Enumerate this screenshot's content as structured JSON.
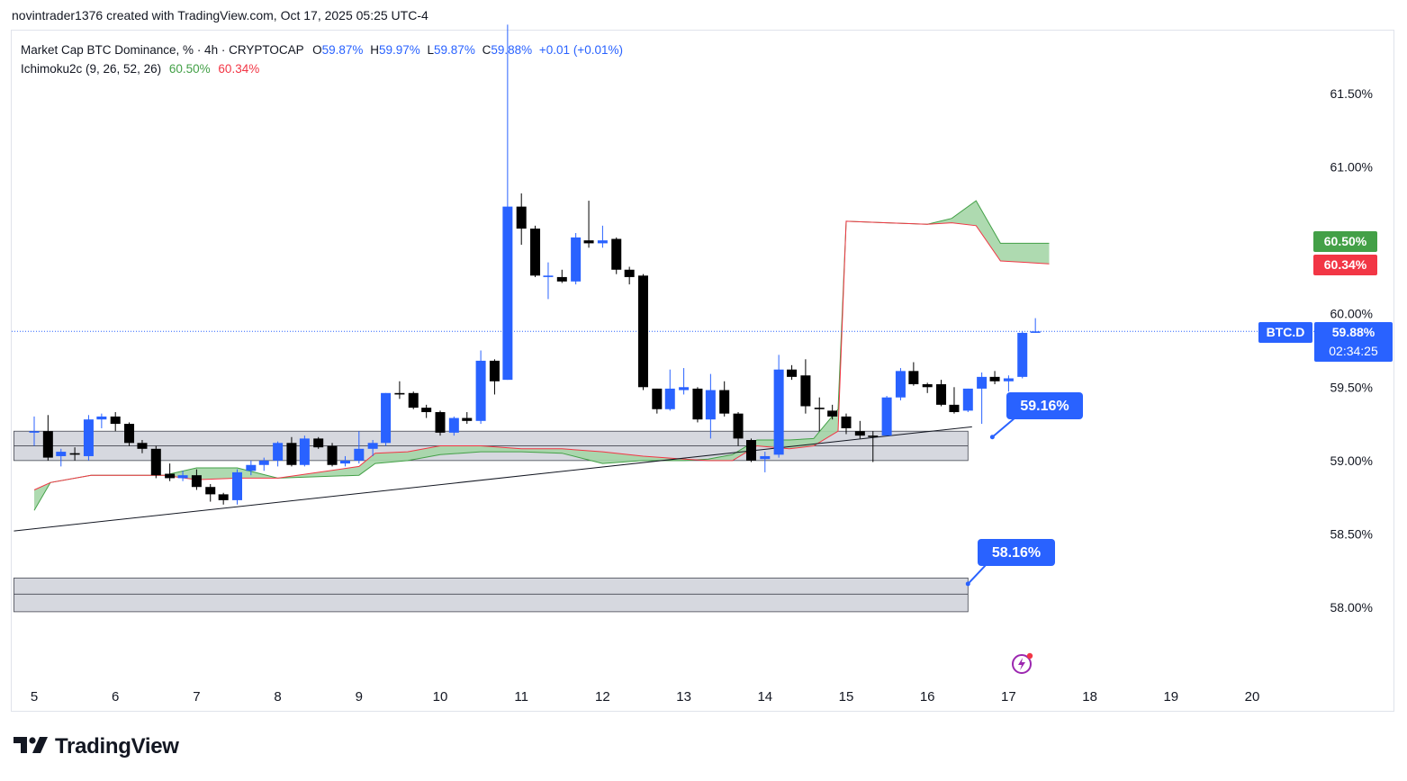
{
  "credit": "novintrader1376 created with TradingView.com, Oct 17, 2025 05:25 UTC-4",
  "legend": {
    "symbol_line": "Market Cap BTC Dominance, % · 4h · CRYPTOCAP",
    "o_label": "O",
    "o_value": "59.87%",
    "h_label": "H",
    "h_value": "59.97%",
    "l_label": "L",
    "l_value": "59.87%",
    "c_label": "C",
    "c_value": "59.88%",
    "change": "+0.01 (+0.01%)",
    "indicator": "Ichimoku2c (9, 26, 52, 26)",
    "ind_v1": "60.50%",
    "ind_v2": "60.34%"
  },
  "price_tags": {
    "green": "60.50%",
    "red": "60.34%",
    "symbol": "BTC.D",
    "last": "59.88%",
    "countdown": "02:34:25"
  },
  "callouts": {
    "upper": "59.16%",
    "lower": "58.16%"
  },
  "brand": "TradingView",
  "colors": {
    "up": "#2962ff",
    "down": "#000000",
    "cloud": "#a5d6a7",
    "cloud_edge_a": "#43a047",
    "cloud_edge_b": "#f23645",
    "accent": "#2962ff"
  },
  "icons": [
    "tradingview-logo-icon",
    "lightning-icon"
  ],
  "chart_data": {
    "type": "candlestick",
    "interval": "4h",
    "ylim": [
      57.55,
      61.85
    ],
    "y_ticks": [
      "61.50%",
      "61.00%",
      "60.00%",
      "59.50%",
      "59.00%",
      "58.50%",
      "58.00%"
    ],
    "y_tick_values": [
      61.5,
      61.0,
      60.0,
      59.5,
      59.0,
      58.5,
      58.0
    ],
    "x_ticks": [
      "5",
      "6",
      "7",
      "8",
      "9",
      "10",
      "11",
      "12",
      "13",
      "14",
      "15",
      "16",
      "17",
      "18",
      "19",
      "20"
    ],
    "last_price": 59.88,
    "candles": [
      [
        5.0,
        59.19,
        59.2,
        59.3,
        59.1
      ],
      [
        5.17,
        59.2,
        59.02,
        59.31,
        59.0
      ],
      [
        5.33,
        59.03,
        59.06,
        59.08,
        58.96
      ],
      [
        5.5,
        59.05,
        59.04,
        59.09,
        59.0
      ],
      [
        5.67,
        59.03,
        59.28,
        59.31,
        59.0
      ],
      [
        5.83,
        59.28,
        59.3,
        59.32,
        59.22
      ],
      [
        6.0,
        59.3,
        59.25,
        59.33,
        59.2
      ],
      [
        6.17,
        59.25,
        59.12,
        59.26,
        59.1
      ],
      [
        6.33,
        59.12,
        59.08,
        59.14,
        59.05
      ],
      [
        6.5,
        59.08,
        58.9,
        59.1,
        58.88
      ],
      [
        6.67,
        58.91,
        58.88,
        58.98,
        58.86
      ],
      [
        6.83,
        58.88,
        58.9,
        58.93,
        58.86
      ],
      [
        7.0,
        58.9,
        58.82,
        58.94,
        58.8
      ],
      [
        7.17,
        58.82,
        58.77,
        58.84,
        58.72
      ],
      [
        7.33,
        58.77,
        58.73,
        58.78,
        58.7
      ],
      [
        7.5,
        58.73,
        58.92,
        58.94,
        58.7
      ],
      [
        7.67,
        58.93,
        58.97,
        59.0,
        58.9
      ],
      [
        7.83,
        58.97,
        59.0,
        59.02,
        58.93
      ],
      [
        8.0,
        59.0,
        59.12,
        59.13,
        58.96
      ],
      [
        8.17,
        59.12,
        58.97,
        59.16,
        58.96
      ],
      [
        8.33,
        58.97,
        59.15,
        59.17,
        58.96
      ],
      [
        8.5,
        59.15,
        59.09,
        59.16,
        59.08
      ],
      [
        8.67,
        59.1,
        58.97,
        59.12,
        58.96
      ],
      [
        8.83,
        58.98,
        59.0,
        59.03,
        58.96
      ],
      [
        9.0,
        59.0,
        59.08,
        59.2,
        58.98
      ],
      [
        9.17,
        59.08,
        59.12,
        59.14,
        59.03
      ],
      [
        9.33,
        59.12,
        59.46,
        59.46,
        59.1
      ],
      [
        9.5,
        59.46,
        59.45,
        59.54,
        59.42
      ],
      [
        9.67,
        59.46,
        59.36,
        59.47,
        59.35
      ],
      [
        9.83,
        59.36,
        59.33,
        59.38,
        59.29
      ],
      [
        10.0,
        59.33,
        59.19,
        59.34,
        59.17
      ],
      [
        10.17,
        59.19,
        59.29,
        59.3,
        59.17
      ],
      [
        10.33,
        59.29,
        59.27,
        59.33,
        59.25
      ],
      [
        10.5,
        59.27,
        59.68,
        59.75,
        59.25
      ],
      [
        10.67,
        59.68,
        59.54,
        59.69,
        59.45
      ],
      [
        10.83,
        59.55,
        60.73,
        61.97,
        59.55
      ],
      [
        11.0,
        60.73,
        60.58,
        60.82,
        60.47
      ],
      [
        11.17,
        60.58,
        60.26,
        60.6,
        60.25
      ],
      [
        11.33,
        60.25,
        60.26,
        60.35,
        60.1
      ],
      [
        11.5,
        60.25,
        60.22,
        60.3,
        60.21
      ],
      [
        11.67,
        60.22,
        60.52,
        60.55,
        60.2
      ],
      [
        11.83,
        60.5,
        60.48,
        60.77,
        60.45
      ],
      [
        12.0,
        60.48,
        60.5,
        60.6,
        60.45
      ],
      [
        12.17,
        60.51,
        60.3,
        60.52,
        60.27
      ],
      [
        12.33,
        60.3,
        60.25,
        60.32,
        60.2
      ],
      [
        12.5,
        60.26,
        59.5,
        60.27,
        59.48
      ],
      [
        12.67,
        59.49,
        59.35,
        59.49,
        59.32
      ],
      [
        12.83,
        59.35,
        59.49,
        59.62,
        59.34
      ],
      [
        13.0,
        59.48,
        59.5,
        59.63,
        59.45
      ],
      [
        13.17,
        59.49,
        59.28,
        59.5,
        59.26
      ],
      [
        13.33,
        59.28,
        59.48,
        59.59,
        59.15
      ],
      [
        13.5,
        59.48,
        59.32,
        59.54,
        59.3
      ],
      [
        13.67,
        59.32,
        59.15,
        59.33,
        59.1
      ],
      [
        13.83,
        59.14,
        59.0,
        59.15,
        58.99
      ],
      [
        14.0,
        59.01,
        59.03,
        59.06,
        58.92
      ],
      [
        14.17,
        59.04,
        59.62,
        59.72,
        59.02
      ],
      [
        14.33,
        59.62,
        59.57,
        59.65,
        59.55
      ],
      [
        14.5,
        59.58,
        59.37,
        59.69,
        59.32
      ],
      [
        14.67,
        59.36,
        59.35,
        59.43,
        59.2
      ],
      [
        14.83,
        59.34,
        59.3,
        59.38,
        59.28
      ],
      [
        15.0,
        59.3,
        59.22,
        59.32,
        59.18
      ],
      [
        15.17,
        59.2,
        59.17,
        59.27,
        59.15
      ],
      [
        15.33,
        59.17,
        59.16,
        59.2,
        58.99
      ],
      [
        15.5,
        59.17,
        59.43,
        59.44,
        59.17
      ],
      [
        15.67,
        59.43,
        59.61,
        59.63,
        59.41
      ],
      [
        15.83,
        59.61,
        59.52,
        59.67,
        59.51
      ],
      [
        16.0,
        59.52,
        59.5,
        59.53,
        59.46
      ],
      [
        16.17,
        59.52,
        59.38,
        59.55,
        59.37
      ],
      [
        16.33,
        59.38,
        59.33,
        59.5,
        59.32
      ],
      [
        16.5,
        59.34,
        59.49,
        59.49,
        59.33
      ],
      [
        16.67,
        59.49,
        59.57,
        59.6,
        59.25
      ],
      [
        16.83,
        59.57,
        59.54,
        59.61,
        59.52
      ],
      [
        17.0,
        59.54,
        59.56,
        59.58,
        59.47
      ],
      [
        17.17,
        59.57,
        59.87,
        59.88,
        59.56
      ],
      [
        17.33,
        59.87,
        59.88,
        59.97,
        59.87
      ]
    ],
    "cloud": {
      "edge_a": [
        [
          5.0,
          58.66
        ],
        [
          5.2,
          58.85
        ],
        [
          5.7,
          58.9
        ],
        [
          6.6,
          58.9
        ],
        [
          7.0,
          58.95
        ],
        [
          7.5,
          58.95
        ],
        [
          8.0,
          58.88
        ],
        [
          9.0,
          58.9
        ],
        [
          9.2,
          58.98
        ],
        [
          9.6,
          59.0
        ],
        [
          10.0,
          59.04
        ],
        [
          10.5,
          59.06
        ],
        [
          11.0,
          59.06
        ],
        [
          11.5,
          59.05
        ],
        [
          12.0,
          58.98
        ],
        [
          12.5,
          59.0
        ],
        [
          13.0,
          59.0
        ],
        [
          13.3,
          59.01
        ],
        [
          13.6,
          59.04
        ],
        [
          13.9,
          59.14
        ],
        [
          14.3,
          59.14
        ],
        [
          14.6,
          59.15
        ],
        [
          14.9,
          59.35
        ],
        [
          15.0,
          60.63
        ],
        [
          15.5,
          60.62
        ],
        [
          16.0,
          60.61
        ],
        [
          16.3,
          60.65
        ],
        [
          16.6,
          60.77
        ],
        [
          16.9,
          60.48
        ],
        [
          17.5,
          60.48
        ]
      ],
      "edge_b": [
        [
          5.0,
          58.8
        ],
        [
          5.2,
          58.85
        ],
        [
          5.7,
          58.9
        ],
        [
          6.6,
          58.9
        ],
        [
          7.0,
          58.87
        ],
        [
          7.5,
          58.88
        ],
        [
          8.0,
          58.88
        ],
        [
          9.0,
          58.96
        ],
        [
          9.2,
          59.05
        ],
        [
          9.6,
          59.06
        ],
        [
          10.0,
          59.1
        ],
        [
          10.5,
          59.1
        ],
        [
          11.0,
          59.08
        ],
        [
          11.5,
          59.08
        ],
        [
          12.0,
          59.06
        ],
        [
          12.5,
          59.03
        ],
        [
          13.0,
          59.01
        ],
        [
          13.3,
          59.0
        ],
        [
          13.6,
          59.0
        ],
        [
          13.9,
          59.1
        ],
        [
          14.3,
          59.08
        ],
        [
          14.6,
          59.1
        ],
        [
          14.9,
          59.2
        ],
        [
          15.0,
          60.63
        ],
        [
          15.5,
          60.62
        ],
        [
          16.0,
          60.61
        ],
        [
          16.3,
          60.62
        ],
        [
          16.6,
          60.6
        ],
        [
          16.9,
          60.36
        ],
        [
          17.5,
          60.34
        ]
      ]
    },
    "trendline": [
      [
        4.75,
        58.52
      ],
      [
        16.55,
        59.23
      ]
    ],
    "zones": [
      {
        "x0": 4.75,
        "x1": 16.5,
        "top": 59.2,
        "mid": 59.1,
        "bottom": 59.0
      },
      {
        "x0": 4.75,
        "x1": 16.5,
        "top": 58.2,
        "mid": 58.09,
        "bottom": 57.97
      }
    ]
  }
}
